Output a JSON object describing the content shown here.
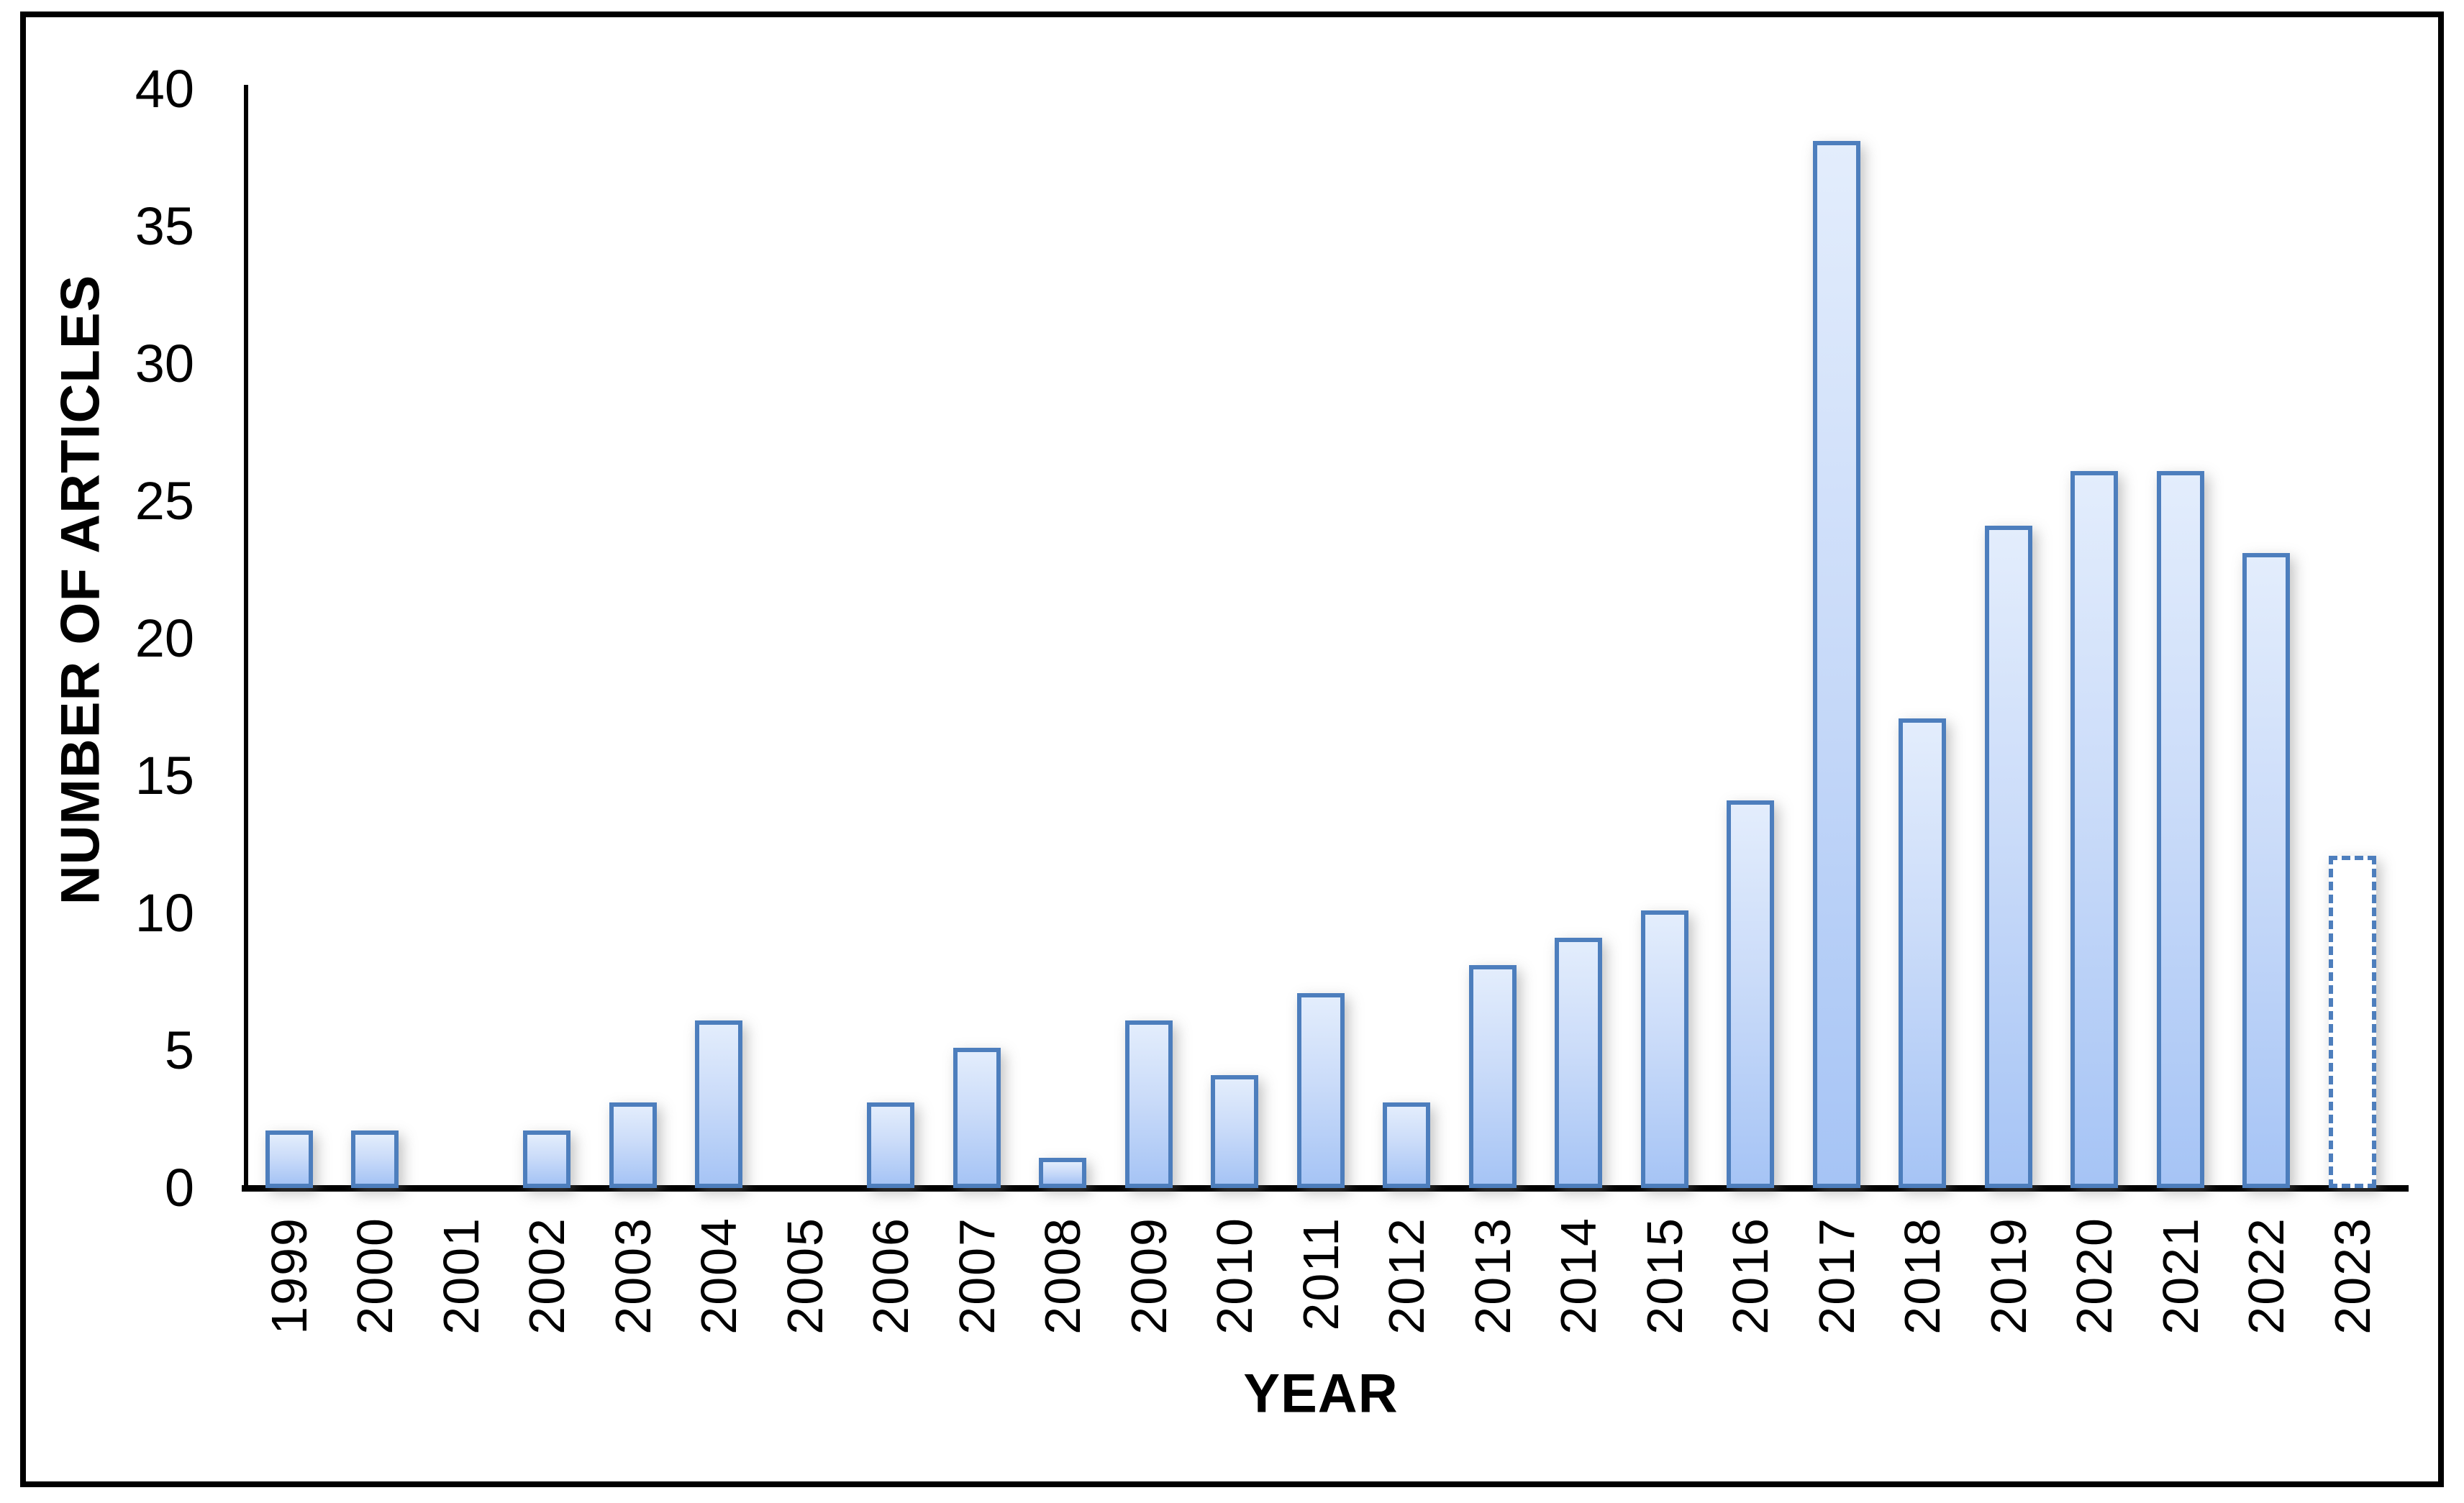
{
  "chart_data": {
    "type": "bar",
    "title": "",
    "xlabel": "YEAR",
    "ylabel": "NUMBER OF ARTICLES",
    "categories": [
      "1999",
      "2000",
      "2001",
      "2002",
      "2003",
      "2004",
      "2005",
      "2006",
      "2007",
      "2008",
      "2009",
      "2010",
      "2011",
      "2012",
      "2013",
      "2014",
      "2015",
      "2016",
      "2017",
      "2018",
      "2019",
      "2020",
      "2021",
      "2022",
      "2023"
    ],
    "values": [
      2,
      2,
      0,
      2,
      3,
      6,
      0,
      3,
      5,
      1,
      6,
      4,
      7,
      3,
      8,
      9,
      10,
      14,
      38,
      17,
      24,
      26,
      26,
      23,
      12
    ],
    "ylim": [
      0,
      40
    ],
    "y_ticks": [
      0,
      5,
      10,
      15,
      20,
      25,
      30,
      35,
      40
    ],
    "grid": false,
    "legend": "none",
    "dashed_categories": [
      "2023"
    ],
    "colors": {
      "bar_fill_top": "#e3edfc",
      "bar_fill_bottom": "#a6c4f5",
      "bar_border": "#4d7ebd",
      "dashed_bar_fill": "#ffffff",
      "axis": "#000000",
      "figure_border": "#000000"
    }
  }
}
